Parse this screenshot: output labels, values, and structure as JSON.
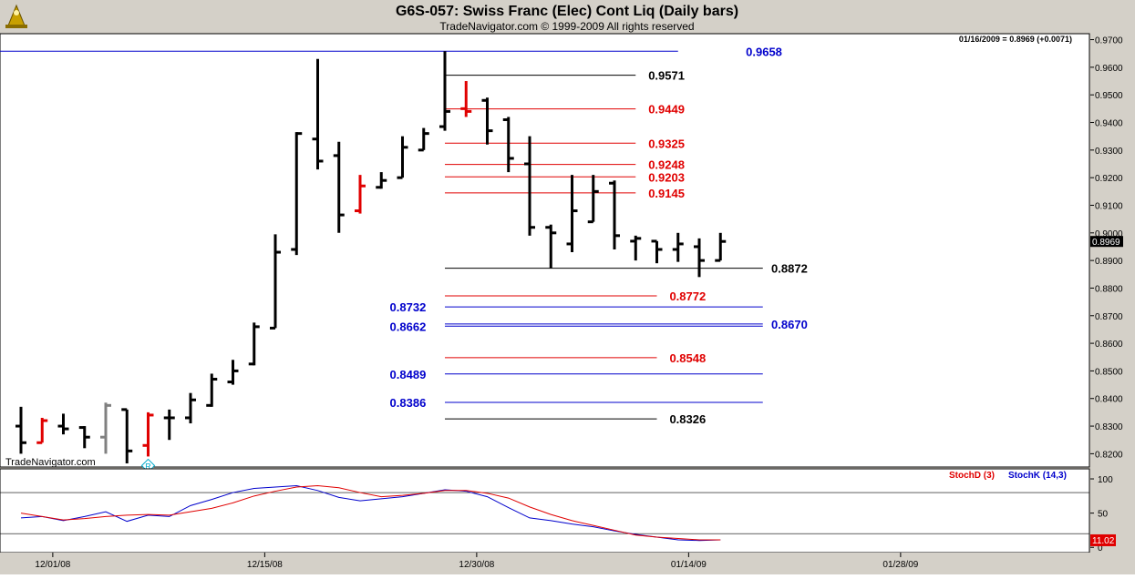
{
  "header": {
    "title": "G6S-057:  Swiss Franc (Elec) Cont Liq  (Daily bars)",
    "subtitle": "TradeNavigator.com © 1999-2009 All rights reserved",
    "quote": "01/16/2009 = 0.8969 (+0.0071)",
    "watermark": "TradeNavigator.com"
  },
  "chart_data": [
    {
      "type": "ohlc",
      "name": "price-panel",
      "ylim": [
        0.8165,
        0.9715
      ],
      "y_ticks": [
        "0.9700",
        "0.9600",
        "0.9500",
        "0.9400",
        "0.9300",
        "0.9200",
        "0.9100",
        "0.9000",
        "0.8900",
        "0.8800",
        "0.8700",
        "0.8600",
        "0.8500",
        "0.8400",
        "0.8300",
        "0.8200"
      ],
      "y_tick_values": [
        0.97,
        0.96,
        0.95,
        0.94,
        0.93,
        0.92,
        0.91,
        0.9,
        0.89,
        0.88,
        0.87,
        0.86,
        0.85,
        0.84,
        0.83,
        0.82
      ],
      "last_price_label": "0.8969",
      "x_labels": [
        {
          "label": "12/01/08",
          "bar": 1.5
        },
        {
          "label": "12/15/08",
          "bar": 11.5
        },
        {
          "label": "12/30/08",
          "bar": 21.5
        },
        {
          "label": "01/14/09",
          "bar": 31.5
        },
        {
          "label": "01/28/09",
          "bar": 41.5
        }
      ],
      "bars": [
        {
          "o": 0.83,
          "h": 0.837,
          "l": 0.82,
          "c": 0.824,
          "color": "#000000"
        },
        {
          "o": 0.824,
          "h": 0.833,
          "l": 0.824,
          "c": 0.832,
          "color": "#e00000"
        },
        {
          "o": 0.83,
          "h": 0.8345,
          "l": 0.827,
          "c": 0.829,
          "color": "#000000"
        },
        {
          "o": 0.8295,
          "h": 0.83,
          "l": 0.822,
          "c": 0.826,
          "color": "#000000"
        },
        {
          "o": 0.826,
          "h": 0.8385,
          "l": 0.82,
          "c": 0.8375,
          "color": "#808080"
        },
        {
          "o": 0.836,
          "h": 0.836,
          "l": 0.8165,
          "c": 0.821,
          "color": "#000000"
        },
        {
          "o": 0.823,
          "h": 0.835,
          "l": 0.819,
          "c": 0.834,
          "color": "#e00000"
        },
        {
          "o": 0.833,
          "h": 0.836,
          "l": 0.825,
          "c": 0.833,
          "color": "#000000"
        },
        {
          "o": 0.833,
          "h": 0.842,
          "l": 0.831,
          "c": 0.8395,
          "color": "#000000"
        },
        {
          "o": 0.8375,
          "h": 0.849,
          "l": 0.837,
          "c": 0.847,
          "color": "#000000"
        },
        {
          "o": 0.846,
          "h": 0.854,
          "l": 0.845,
          "c": 0.85,
          "color": "#000000"
        },
        {
          "o": 0.8525,
          "h": 0.8675,
          "l": 0.852,
          "c": 0.866,
          "color": "#000000"
        },
        {
          "o": 0.8655,
          "h": 0.8995,
          "l": 0.8655,
          "c": 0.893,
          "color": "#000000"
        },
        {
          "o": 0.894,
          "h": 0.9365,
          "l": 0.892,
          "c": 0.936,
          "color": "#000000"
        },
        {
          "o": 0.934,
          "h": 0.963,
          "l": 0.923,
          "c": 0.926,
          "color": "#000000"
        },
        {
          "o": 0.928,
          "h": 0.933,
          "l": 0.9,
          "c": 0.9065,
          "color": "#000000"
        },
        {
          "o": 0.908,
          "h": 0.921,
          "l": 0.907,
          "c": 0.917,
          "color": "#e00000"
        },
        {
          "o": 0.9165,
          "h": 0.922,
          "l": 0.916,
          "c": 0.919,
          "color": "#000000"
        },
        {
          "o": 0.92,
          "h": 0.935,
          "l": 0.92,
          "c": 0.931,
          "color": "#000000"
        },
        {
          "o": 0.93,
          "h": 0.938,
          "l": 0.93,
          "c": 0.936,
          "color": "#000000"
        },
        {
          "o": 0.9385,
          "h": 0.9658,
          "l": 0.937,
          "c": 0.944,
          "color": "#000000"
        },
        {
          "o": 0.945,
          "h": 0.955,
          "l": 0.942,
          "c": 0.944,
          "color": "#e00000"
        },
        {
          "o": 0.948,
          "h": 0.949,
          "l": 0.932,
          "c": 0.937,
          "color": "#000000"
        },
        {
          "o": 0.941,
          "h": 0.942,
          "l": 0.922,
          "c": 0.927,
          "color": "#000000"
        },
        {
          "o": 0.925,
          "h": 0.935,
          "l": 0.899,
          "c": 0.902,
          "color": "#000000"
        },
        {
          "o": 0.902,
          "h": 0.903,
          "l": 0.8872,
          "c": 0.9,
          "color": "#000000"
        },
        {
          "o": 0.896,
          "h": 0.921,
          "l": 0.893,
          "c": 0.908,
          "color": "#000000"
        },
        {
          "o": 0.904,
          "h": 0.921,
          "l": 0.904,
          "c": 0.915,
          "color": "#000000"
        },
        {
          "o": 0.918,
          "h": 0.919,
          "l": 0.894,
          "c": 0.899,
          "color": "#000000"
        },
        {
          "o": 0.897,
          "h": 0.899,
          "l": 0.89,
          "c": 0.898,
          "color": "#000000"
        },
        {
          "o": 0.897,
          "h": 0.897,
          "l": 0.889,
          "c": 0.894,
          "color": "#000000"
        },
        {
          "o": 0.894,
          "h": 0.9,
          "l": 0.8895,
          "c": 0.896,
          "color": "#000000"
        },
        {
          "o": 0.895,
          "h": 0.898,
          "l": 0.884,
          "c": 0.89,
          "color": "#000000"
        },
        {
          "o": 0.89,
          "h": 0.9,
          "l": 0.89,
          "c": 0.8969,
          "color": "#000000"
        }
      ],
      "markers": [
        {
          "bar": 6,
          "symbol": "R",
          "color": "#00aacc"
        }
      ],
      "levels": [
        {
          "value": 0.9658,
          "label": "0.9658",
          "color": "#0000cc",
          "from_bar": -1,
          "to_bar": 31,
          "label_side": "right",
          "label_bar": 34.2
        },
        {
          "value": 0.9571,
          "label": "0.9571",
          "color": "#000000",
          "from_bar": 20,
          "to_bar": 29,
          "label_side": "right",
          "label_bar": 29.6
        },
        {
          "value": 0.9449,
          "label": "0.9449",
          "color": "#e00000",
          "from_bar": 20,
          "to_bar": 29,
          "label_side": "right",
          "label_bar": 29.6
        },
        {
          "value": 0.9325,
          "label": "0.9325",
          "color": "#e00000",
          "from_bar": 20,
          "to_bar": 29,
          "label_side": "right",
          "label_bar": 29.6
        },
        {
          "value": 0.9248,
          "label": "0.9248",
          "color": "#e00000",
          "from_bar": 20,
          "to_bar": 29,
          "label_side": "right",
          "label_bar": 29.6
        },
        {
          "value": 0.9203,
          "label": "0.9203",
          "color": "#e00000",
          "from_bar": 20,
          "to_bar": 29,
          "label_side": "right",
          "label_bar": 29.6
        },
        {
          "value": 0.9145,
          "label": "0.9145",
          "color": "#e00000",
          "from_bar": 20,
          "to_bar": 29,
          "label_side": "right",
          "label_bar": 29.6
        },
        {
          "value": 0.8872,
          "label": "0.8872",
          "color": "#000000",
          "from_bar": 20,
          "to_bar": 35,
          "label_side": "right",
          "label_bar": 35.4
        },
        {
          "value": 0.8772,
          "label": "0.8772",
          "color": "#e00000",
          "from_bar": 20,
          "to_bar": 30,
          "label_side": "right",
          "label_bar": 30.6
        },
        {
          "value": 0.8732,
          "label": "0.8732",
          "color": "#0000cc",
          "from_bar": 20,
          "to_bar": 35,
          "label_side": "left",
          "label_bar": 17.4
        },
        {
          "value": 0.867,
          "label": "0.8670",
          "color": "#0000cc",
          "from_bar": 20,
          "to_bar": 35,
          "label_side": "right",
          "label_bar": 35.4
        },
        {
          "value": 0.8662,
          "label": "0.8662",
          "color": "#0000cc",
          "from_bar": 20,
          "to_bar": 35,
          "label_side": "left",
          "label_bar": 17.4
        },
        {
          "value": 0.8548,
          "label": "0.8548",
          "color": "#e00000",
          "from_bar": 20,
          "to_bar": 30,
          "label_side": "right",
          "label_bar": 30.6
        },
        {
          "value": 0.8489,
          "label": "0.8489",
          "color": "#0000cc",
          "from_bar": 20,
          "to_bar": 35,
          "label_side": "left",
          "label_bar": 17.4
        },
        {
          "value": 0.8386,
          "label": "0.8386",
          "color": "#0000cc",
          "from_bar": 20,
          "to_bar": 35,
          "label_side": "left",
          "label_bar": 17.4
        },
        {
          "value": 0.8326,
          "label": "0.8326",
          "color": "#000000",
          "from_bar": 20,
          "to_bar": 30,
          "label_side": "right",
          "label_bar": 30.6
        }
      ]
    },
    {
      "type": "line",
      "name": "stochastic-panel",
      "ylim": [
        -5,
        112
      ],
      "y_ticks": [
        "100",
        "50",
        "0"
      ],
      "y_tick_values": [
        100,
        50,
        0
      ],
      "reference_lines": [
        80,
        20
      ],
      "last_value_label": "11.02",
      "series": [
        {
          "name": "StochD (3)",
          "color": "#e00000",
          "values": [
            50,
            45,
            40,
            42,
            45,
            47,
            48,
            47,
            52,
            57,
            65,
            75,
            82,
            88,
            90,
            87,
            80,
            74,
            76,
            79,
            83,
            83,
            79,
            72,
            59,
            48,
            39,
            32,
            25,
            18,
            15,
            13,
            11,
            11
          ]
        },
        {
          "name": "StochK (14,3)",
          "color": "#0000cc",
          "values": [
            43,
            45,
            39,
            45,
            52,
            38,
            47,
            45,
            61,
            70,
            80,
            86,
            88,
            90,
            83,
            73,
            68,
            71,
            74,
            79,
            84,
            82,
            74,
            58,
            43,
            39,
            34,
            30,
            24,
            19,
            15,
            11,
            10,
            11
          ]
        }
      ]
    }
  ]
}
